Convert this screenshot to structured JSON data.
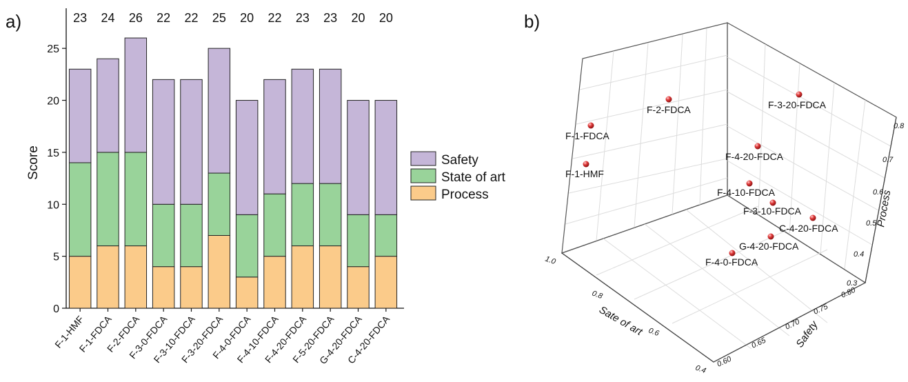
{
  "panels": {
    "a_label": "a)",
    "b_label": "b)"
  },
  "colors": {
    "safety": "#c5b6d8",
    "state_of_art": "#99d39a",
    "process": "#fbcb8a",
    "points": "#e03a3a"
  },
  "chart_data": [
    {
      "type": "bar",
      "stacked": true,
      "ylabel": "Score",
      "xlabel": "",
      "ylim": [
        0,
        27
      ],
      "yticks": [
        0,
        5,
        10,
        15,
        20,
        25
      ],
      "categories": [
        "F-1-HMF",
        "F-1-FDCA",
        "F-2-FDCA",
        "F-3-0-FDCA",
        "F-3-10-FDCA",
        "F-3-20-FDCA",
        "F-4-0-FDCA",
        "F-4-10-FDCA",
        "F-4-20-FDCA",
        "F-5-20-FDCA",
        "G-4-20-FDCA",
        "C-4-20-FDCA"
      ],
      "series": [
        {
          "name": "Process",
          "values": [
            5,
            6,
            6,
            4,
            4,
            7,
            3,
            5,
            6,
            6,
            4,
            5
          ]
        },
        {
          "name": "State of art",
          "values": [
            9,
            9,
            9,
            6,
            6,
            6,
            6,
            6,
            6,
            6,
            5,
            4
          ]
        },
        {
          "name": "Safety",
          "values": [
            9,
            9,
            11,
            12,
            12,
            12,
            11,
            11,
            11,
            11,
            11,
            11
          ]
        }
      ],
      "totals": [
        "23",
        "24",
        "26",
        "22",
        "22",
        "25",
        "20",
        "22",
        "23",
        "23",
        "20",
        "20"
      ],
      "legend": {
        "position": "right",
        "entries": [
          "Safety",
          "State of art",
          "Process"
        ]
      }
    },
    {
      "type": "scatter",
      "dims": 3,
      "axes": {
        "x_label": "Sate of art",
        "x_range": [
          0.4,
          1.0
        ],
        "x_ticks": [
          "0.4",
          "0.6",
          "0.8",
          "1.0"
        ],
        "y_label": "Safety",
        "y_range": [
          0.6,
          0.8
        ],
        "y_ticks": [
          "0.60",
          "0.65",
          "0.70",
          "0.75",
          "0.80"
        ],
        "z_label": "Process",
        "z_range": [
          0.3,
          0.8
        ],
        "z_ticks": [
          "0.3",
          "0.4",
          "0.5",
          "0.6",
          "0.7",
          "0.8"
        ]
      },
      "grid": true,
      "points": [
        {
          "label": "F-1-FDCA"
        },
        {
          "label": "F-1-HMF"
        },
        {
          "label": "F-2-FDCA"
        },
        {
          "label": "F-3-20-FDCA"
        },
        {
          "label": "F-4-20-FDCA"
        },
        {
          "label": "F-4-10-FDCA"
        },
        {
          "label": "F-3-10-FDCA"
        },
        {
          "label": "C-4-20-FDCA"
        },
        {
          "label": "G-4-20-FDCA"
        },
        {
          "label": "F-4-0-FDCA"
        }
      ]
    }
  ]
}
